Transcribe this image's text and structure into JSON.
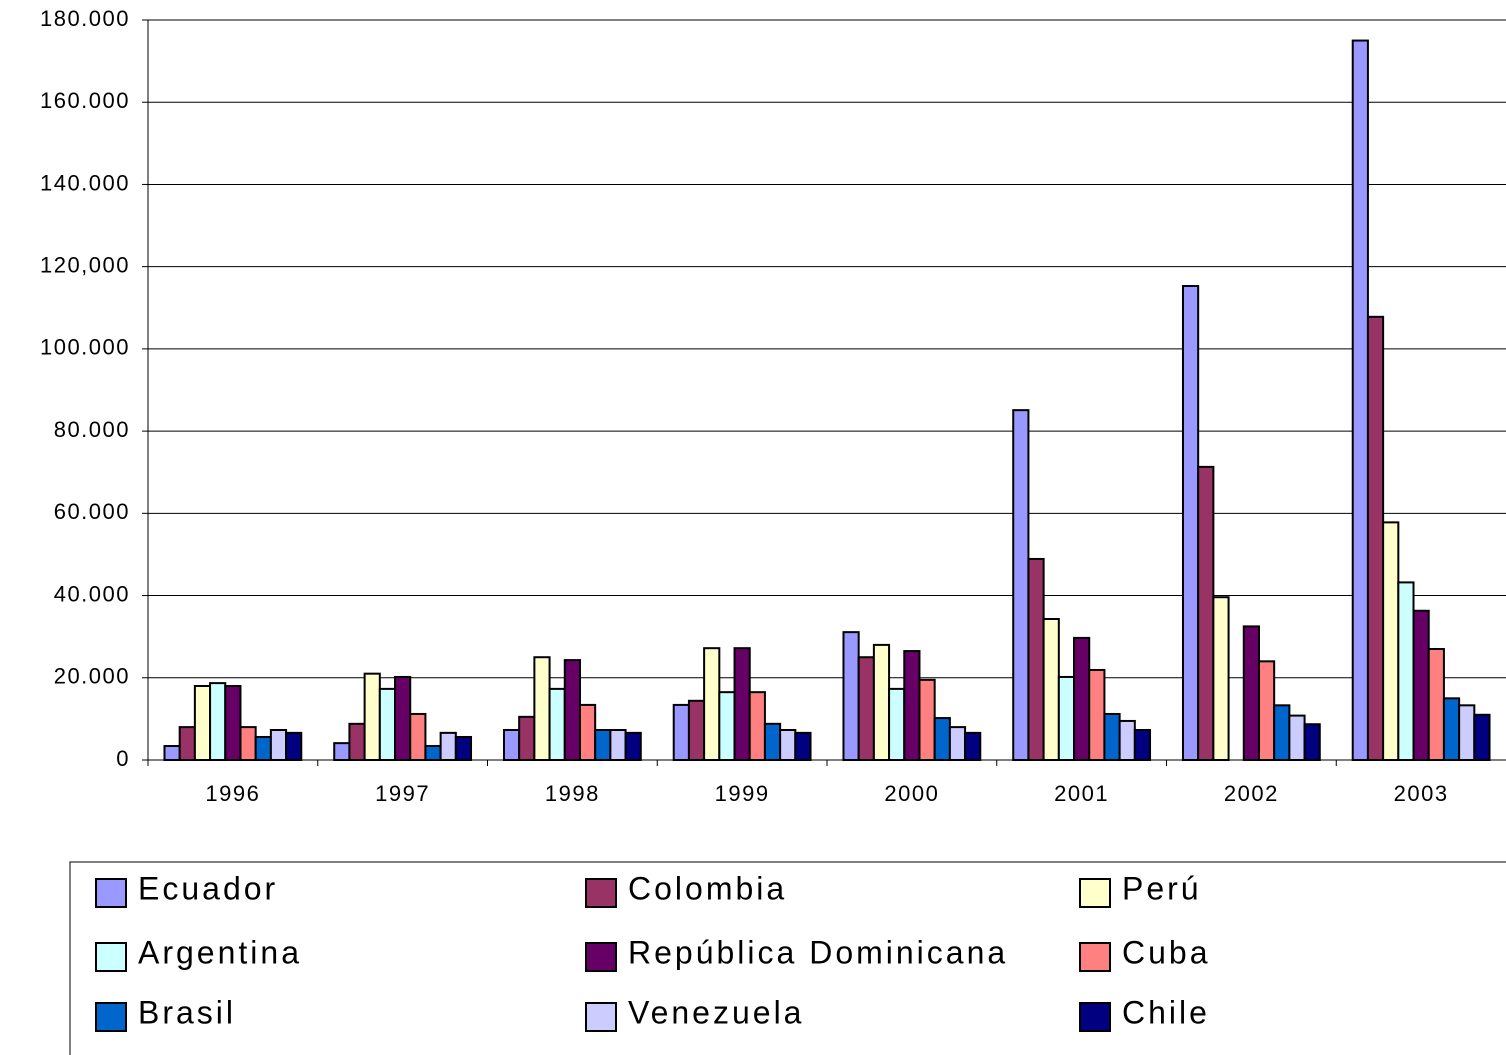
{
  "chart_data": {
    "type": "bar",
    "categories": [
      "1996",
      "1997",
      "1998",
      "1999",
      "2000",
      "2001",
      "2002",
      "2003"
    ],
    "series": [
      {
        "name": "Ecuador",
        "color": "#9999ff",
        "values": [
          3400,
          4100,
          7300,
          13400,
          31100,
          85100,
          115300,
          175000
        ]
      },
      {
        "name": "Colombia",
        "color": "#993366",
        "values": [
          8000,
          8800,
          10500,
          14400,
          25000,
          48900,
          71300,
          107800
        ]
      },
      {
        "name": "Perú",
        "color": "#ffffcc",
        "values": [
          18000,
          21000,
          25000,
          27200,
          28000,
          34300,
          39600,
          57800
        ]
      },
      {
        "name": "Argentina",
        "color": "#ccffff",
        "values": [
          18700,
          17300,
          17300,
          16500,
          17300,
          20200,
          null,
          43200
        ]
      },
      {
        "name": "República Dominicana",
        "color": "#660066",
        "values": [
          18000,
          20200,
          24300,
          27200,
          26500,
          29700,
          32500,
          36300
        ]
      },
      {
        "name": "Cuba",
        "color": "#ff8080",
        "values": [
          8000,
          11200,
          13400,
          16500,
          19500,
          21900,
          24000,
          27000
        ]
      },
      {
        "name": "Brasil",
        "color": "#0066cc",
        "values": [
          5600,
          3400,
          7300,
          8800,
          10200,
          11200,
          13300,
          15000
        ]
      },
      {
        "name": "Venezuela",
        "color": "#ccccff",
        "values": [
          7300,
          6600,
          7300,
          7300,
          8000,
          9500,
          10800,
          13300
        ]
      },
      {
        "name": "Chile",
        "color": "#000080",
        "values": [
          6600,
          5600,
          6600,
          6600,
          6600,
          7300,
          8700,
          11000
        ]
      }
    ],
    "ylim": [
      0,
      180000
    ],
    "yticks": [
      0,
      {
        "value": 20000,
        "label": "20.000"
      },
      {
        "value": 40000,
        "label": "40.000"
      },
      {
        "value": 60000,
        "label": "60.000"
      },
      {
        "value": 80000,
        "label": "80.000"
      },
      {
        "value": 100000,
        "label": "100.000"
      },
      {
        "value": 120000,
        "label": "120,000"
      },
      {
        "value": 140000,
        "label": "140.000"
      },
      {
        "value": 160000,
        "label": "160.000"
      },
      {
        "value": 180000,
        "label": "180.000"
      }
    ],
    "grid": true,
    "legend": "bottom"
  }
}
